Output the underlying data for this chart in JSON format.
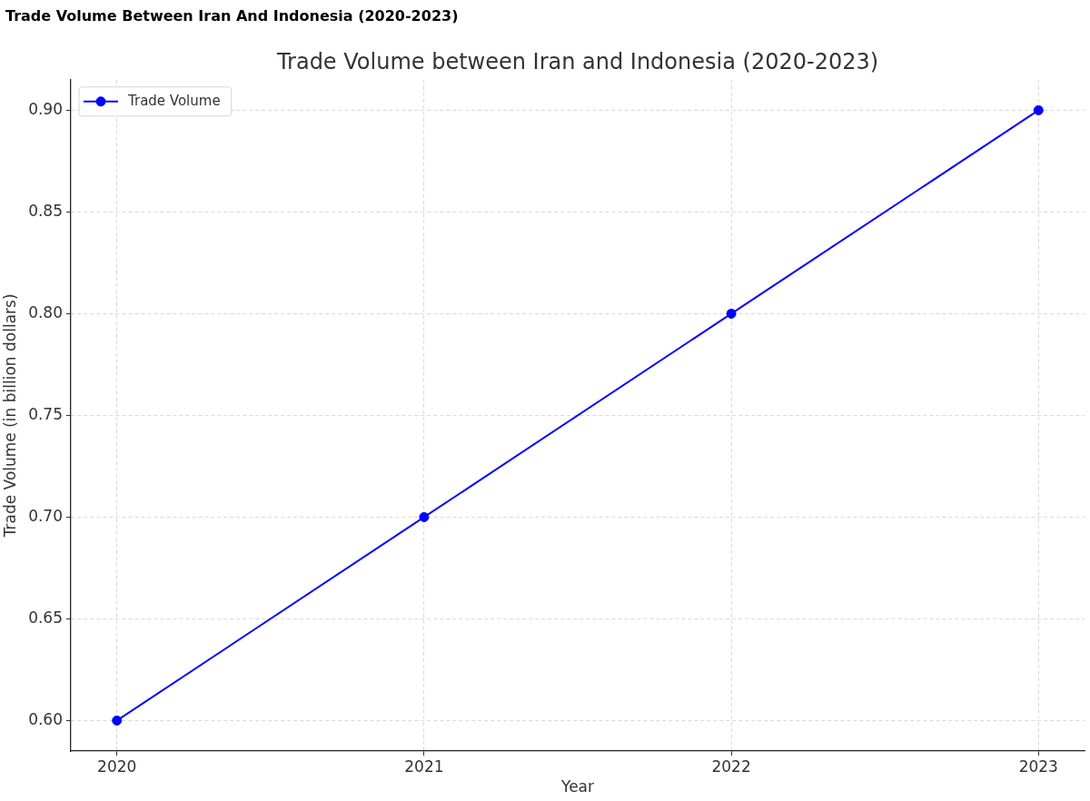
{
  "chart_data": {
    "type": "line",
    "title": "Trade Volume Between Iran And Indonesia (2020-2023)",
    "subtitle": "Trade Volume between Iran and Indonesia (2020-2023)",
    "xlabel": "Year",
    "ylabel": "Trade Volume (in billion dollars)",
    "x": [
      2020,
      2021,
      2022,
      2023
    ],
    "series": [
      {
        "name": "Trade Volume",
        "color": "#0000ff",
        "values": [
          0.6,
          0.7,
          0.8,
          0.9
        ]
      }
    ],
    "xlim": [
      2019.85,
      2023.15
    ],
    "xticks": [
      2020,
      2021,
      2022,
      2023
    ],
    "ylim": [
      0.585,
      0.915
    ],
    "yticks": [
      {
        "value": 0.6,
        "label": "0.60"
      },
      {
        "value": 0.65,
        "label": "0.65"
      },
      {
        "value": 0.7,
        "label": "0.70"
      },
      {
        "value": 0.75,
        "label": "0.75"
      },
      {
        "value": 0.8,
        "label": "0.80"
      },
      {
        "value": 0.85,
        "label": "0.85"
      },
      {
        "value": 0.9,
        "label": "0.90"
      }
    ],
    "grid": true,
    "legend": "top left",
    "marker": "circle",
    "line_style": "solid"
  }
}
